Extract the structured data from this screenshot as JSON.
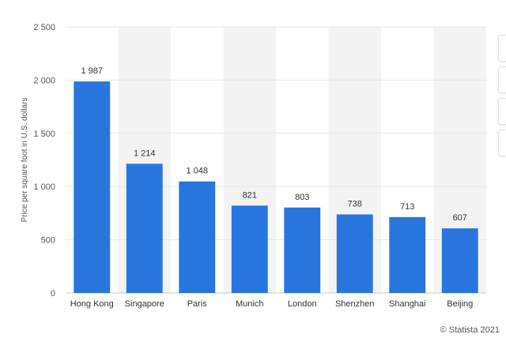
{
  "chart_data": {
    "type": "bar",
    "categories": [
      "Hong Kong",
      "Singapore",
      "Paris",
      "Munich",
      "London",
      "Shenzhen",
      "Shanghai",
      "Beijing"
    ],
    "values": [
      1987,
      1214,
      1048,
      821,
      803,
      738,
      713,
      607
    ],
    "value_labels": [
      "1 987",
      "1 214",
      "1 048",
      "821",
      "803",
      "738",
      "713",
      "607"
    ],
    "ylabel": "Price per square foot in U.S. dollars",
    "ylim": [
      0,
      2500
    ],
    "yticks": [
      0,
      500,
      1000,
      1500,
      2000,
      2500
    ],
    "ytick_labels": [
      "0",
      "500",
      "1 000",
      "1 500",
      "2 000",
      "2 500"
    ],
    "grid": true,
    "bar_color": "#2876dd",
    "band_color": "#f3f3f3"
  },
  "footer": {
    "copyright": "© Statista 2021"
  }
}
